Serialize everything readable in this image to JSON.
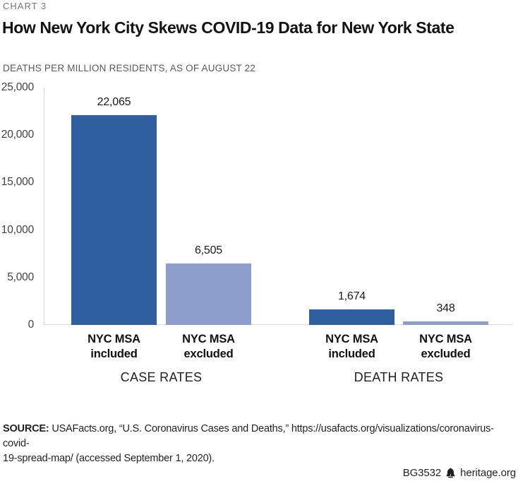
{
  "header": {
    "kicker": "CHART 3"
  },
  "chart_data": {
    "type": "bar",
    "title": "How New York City Skews COVID-19 Data for New York State",
    "subtitle": "DEATHS PER MILLION RESIDENTS, AS OF AUGUST 22",
    "xlabel": "",
    "ylabel": "",
    "ylim": [
      0,
      25000
    ],
    "grid": false,
    "legend": "none",
    "ytick_labels": [
      "0",
      "5,000",
      "10,000",
      "15,000",
      "20,000",
      "25,000"
    ],
    "colors": {
      "included_bar": "#2F5F9E",
      "excluded_bar": "#8E9ECC",
      "axis_line": "#D9D9D9",
      "tick_text": "#404040"
    },
    "groups": [
      {
        "label": "CASE RATES",
        "bars": [
          {
            "category": "NYC MSA\nincluded",
            "value": 22065,
            "value_label": "22,065",
            "color": "#2F5F9E"
          },
          {
            "category": "NYC MSA\nexcluded",
            "value": 6505,
            "value_label": "6,505",
            "color": "#8E9ECC"
          }
        ]
      },
      {
        "label": "DEATH RATES",
        "bars": [
          {
            "category": "NYC MSA\nincluded",
            "value": 1674,
            "value_label": "1,674",
            "color": "#2F5F9E"
          },
          {
            "category": "NYC MSA\nexcluded",
            "value": 348,
            "value_label": "348",
            "color": "#8E9ECC"
          }
        ]
      }
    ]
  },
  "source": {
    "label": "SOURCE:",
    "lines": [
      "USAFacts.org, “U.S. Coronavirus Cases and Deaths,” https://usafacts.org/visualizations/coronavirus-covid-",
      "19-spread-map/ (accessed September 1, 2020)."
    ]
  },
  "footer": {
    "doc_id": "BG3532",
    "bell_icon": "liberty-bell-icon",
    "site": "heritage.org"
  }
}
